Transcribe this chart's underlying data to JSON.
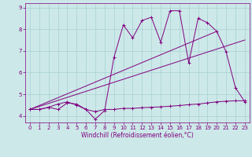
{
  "xlabel": "Windchill (Refroidissement éolien,°C)",
  "background_color": "#cce8e8",
  "grid_color": "#a8d0d0",
  "line_color": "#800080",
  "xlim": [
    -0.5,
    23.5
  ],
  "ylim": [
    3.7,
    9.2
  ],
  "yticks": [
    4,
    5,
    6,
    7,
    8,
    9
  ],
  "xticks": [
    0,
    1,
    2,
    3,
    4,
    5,
    6,
    7,
    8,
    9,
    10,
    11,
    12,
    13,
    14,
    15,
    16,
    17,
    18,
    19,
    20,
    21,
    22,
    23
  ],
  "series_flat_x": [
    0,
    1,
    2,
    3,
    4,
    5,
    6,
    7,
    8,
    9,
    10,
    11,
    12,
    13,
    14,
    15,
    16,
    17,
    18,
    19,
    20,
    21,
    22,
    23
  ],
  "series_flat_y": [
    4.3,
    4.3,
    4.4,
    4.3,
    4.6,
    4.55,
    4.3,
    4.2,
    4.3,
    4.3,
    4.35,
    4.35,
    4.38,
    4.4,
    4.42,
    4.45,
    4.48,
    4.52,
    4.55,
    4.6,
    4.65,
    4.68,
    4.7,
    4.7
  ],
  "series_main_x": [
    0,
    1,
    2,
    3,
    4,
    5,
    6,
    7,
    8,
    9,
    10,
    11,
    12,
    13,
    14,
    15,
    16,
    17,
    18,
    19,
    20,
    21,
    22,
    23
  ],
  "series_main_y": [
    4.3,
    4.3,
    4.4,
    4.55,
    4.65,
    4.5,
    4.3,
    3.85,
    4.25,
    6.7,
    8.2,
    7.6,
    8.4,
    8.55,
    7.4,
    8.85,
    8.85,
    6.45,
    8.5,
    8.3,
    7.9,
    6.95,
    5.3,
    4.65
  ],
  "trend1_x": [
    0,
    23
  ],
  "trend1_y": [
    4.3,
    7.5
  ],
  "trend2_x": [
    0,
    20
  ],
  "trend2_y": [
    4.3,
    7.9
  ],
  "xlabel_fontsize": 5.5,
  "tick_fontsize": 5.0
}
